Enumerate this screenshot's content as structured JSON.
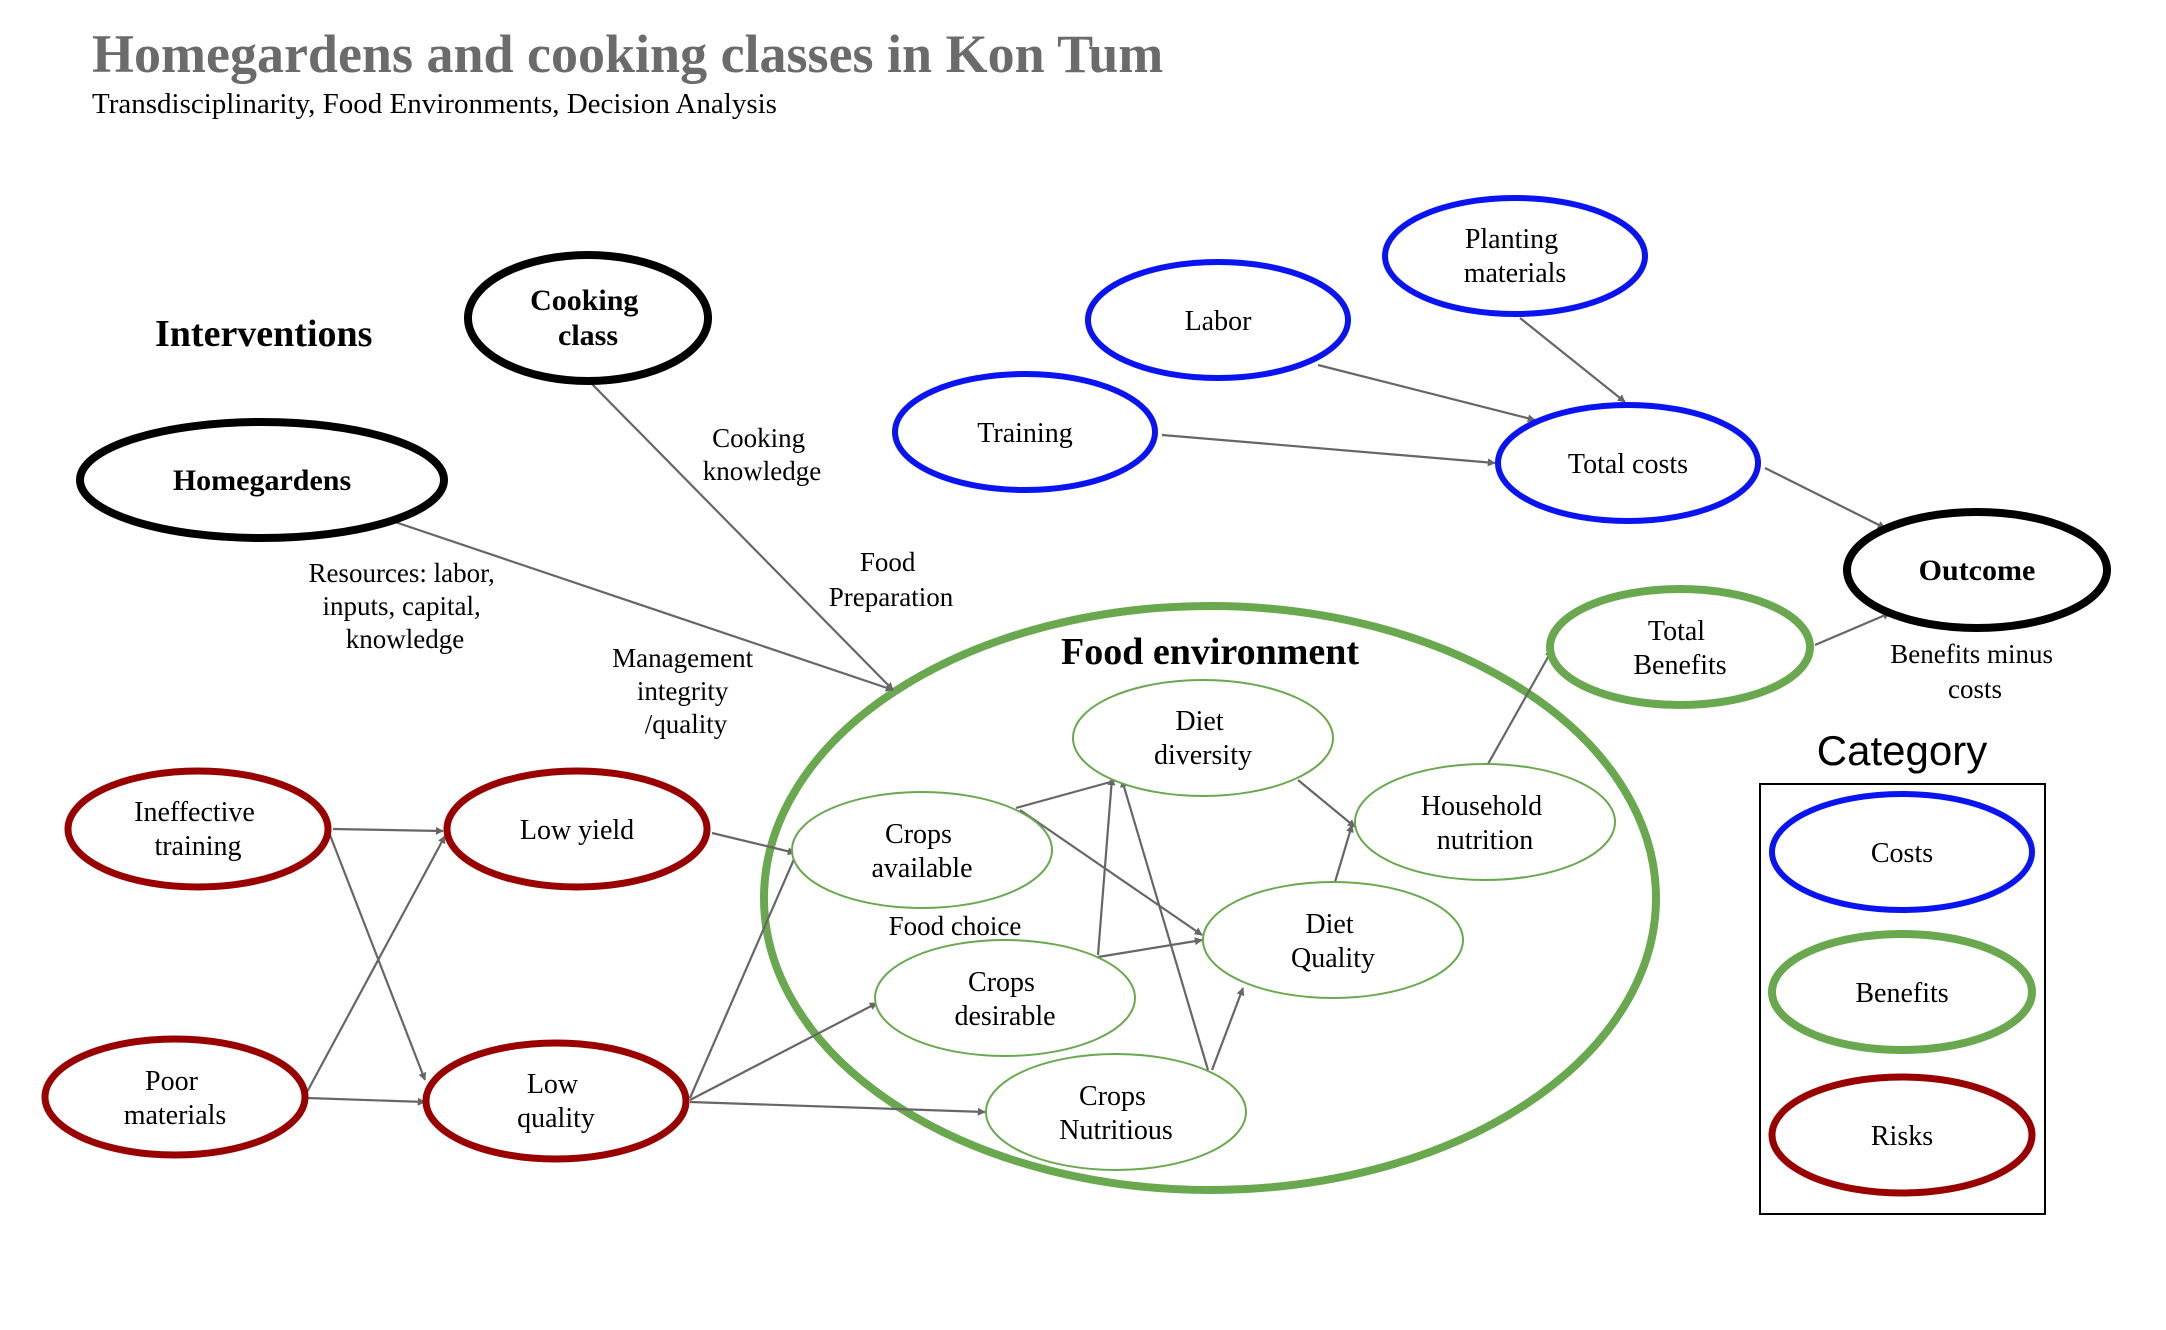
{
  "header": {
    "title": "Homegardens and cooking classes in Kon Tum",
    "subtitle": "Transdisciplinarity, Food Environments, Decision Analysis"
  },
  "sections": {
    "interventions": "Interventions",
    "food_environment": "Food environment",
    "category": "Category"
  },
  "colors": {
    "cost": "#0a14f0",
    "benefit": "#6aa84f",
    "risk": "#990000",
    "intervention": "#000000",
    "edge": "#666666"
  },
  "nodes": {
    "cooking_class": [
      "Cooking",
      "class"
    ],
    "homegardens": [
      "Homegardens"
    ],
    "planting_materials": [
      "Planting",
      "materials"
    ],
    "labor": [
      "Labor"
    ],
    "training": [
      "Training"
    ],
    "total_costs": [
      "Total costs"
    ],
    "outcome": [
      "Outcome"
    ],
    "total_benefits": [
      "Total",
      "Benefits"
    ],
    "ineffective_training": [
      "Ineffective",
      "training"
    ],
    "low_yield": [
      "Low yield"
    ],
    "poor_materials": [
      "Poor",
      "materials"
    ],
    "low_quality": [
      "Low",
      "quality"
    ],
    "crops_available": [
      "Crops",
      "available"
    ],
    "diet_diversity": [
      "Diet",
      "diversity"
    ],
    "household_nutrition": [
      "Household",
      "nutrition"
    ],
    "diet_quality": [
      "Diet",
      "Quality"
    ],
    "crops_desirable": [
      "Crops",
      "desirable"
    ],
    "crops_nutritious": [
      "Crops",
      "Nutritious"
    ]
  },
  "edge_labels": {
    "cooking_knowledge": [
      "Cooking",
      "knowledge"
    ],
    "food_preparation": [
      "Food",
      "Preparation"
    ],
    "resources": [
      "Resources: labor,",
      "inputs, capital,",
      "knowledge"
    ],
    "management": [
      "Management",
      "integrity",
      "/quality"
    ],
    "food_choice": [
      "Food choice"
    ],
    "benefits_minus_costs": [
      "Benefits minus",
      "costs"
    ]
  },
  "legend": {
    "costs": "Costs",
    "benefits": "Benefits",
    "risks": "Risks"
  }
}
